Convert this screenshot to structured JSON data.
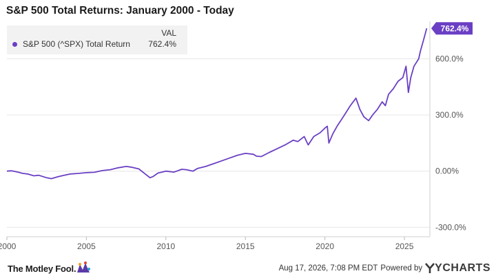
{
  "chart_data": {
    "type": "line",
    "title": "S&P 500 Total Returns: January 2000 - Today",
    "xlim": [
      2000,
      2026.6
    ],
    "ylim": [
      -350,
      800
    ],
    "y_ticks": [
      -300,
      0,
      300,
      600
    ],
    "y_tick_labels": [
      "-300.0%",
      "0.00%",
      "300.0%",
      "600.0%"
    ],
    "x_ticks": [
      2000,
      2005,
      2010,
      2015,
      2020,
      2025
    ],
    "x_tick_labels": [
      "2000",
      "2005",
      "2010",
      "2015",
      "2020",
      "2025"
    ],
    "grid": "horizontal",
    "legend_position": "top-left",
    "legend_header": "VAL",
    "series": [
      {
        "name": "S&P 500 (^SPX) Total Return",
        "color": "#6a3fc4",
        "last_value_label": "762.4%",
        "x": [
          2000.0,
          2000.3,
          2000.7,
          2001.0,
          2001.3,
          2001.7,
          2002.0,
          2002.5,
          2002.8,
          2003.2,
          2003.6,
          2004.0,
          2004.5,
          2005.0,
          2005.5,
          2006.0,
          2006.5,
          2007.0,
          2007.5,
          2007.8,
          2008.3,
          2008.7,
          2009.0,
          2009.2,
          2009.5,
          2010.0,
          2010.5,
          2011.0,
          2011.3,
          2011.7,
          2012.0,
          2012.5,
          2013.0,
          2013.5,
          2014.0,
          2014.5,
          2015.0,
          2015.5,
          2015.7,
          2016.0,
          2016.5,
          2017.0,
          2017.5,
          2018.0,
          2018.3,
          2018.7,
          2018.95,
          2019.3,
          2019.7,
          2020.0,
          2020.15,
          2020.25,
          2020.5,
          2020.8,
          2021.0,
          2021.3,
          2021.6,
          2021.95,
          2022.2,
          2022.45,
          2022.75,
          2023.0,
          2023.3,
          2023.6,
          2023.8,
          2024.0,
          2024.3,
          2024.6,
          2024.9,
          2025.1,
          2025.25,
          2025.4,
          2025.6,
          2025.9,
          2026.0,
          2026.2,
          2026.4
        ],
        "values": [
          0,
          2,
          -5,
          -12,
          -15,
          -25,
          -22,
          -35,
          -40,
          -30,
          -22,
          -15,
          -12,
          -8,
          -6,
          3,
          8,
          18,
          25,
          22,
          12,
          -15,
          -35,
          -28,
          -10,
          0,
          -5,
          10,
          8,
          0,
          15,
          25,
          40,
          55,
          70,
          85,
          95,
          90,
          80,
          78,
          100,
          120,
          140,
          165,
          158,
          185,
          140,
          185,
          205,
          230,
          240,
          150,
          200,
          245,
          270,
          310,
          350,
          390,
          330,
          290,
          270,
          300,
          330,
          370,
          350,
          410,
          440,
          480,
          500,
          560,
          420,
          500,
          560,
          600,
          640,
          700,
          762.4
        ]
      }
    ]
  },
  "footer": {
    "logo_text": "The Motley Fool.",
    "timestamp": "Aug 17, 2026, 7:08 PM EDT",
    "powered_by": "Powered by",
    "ycharts_brand": "YCHARTS"
  }
}
